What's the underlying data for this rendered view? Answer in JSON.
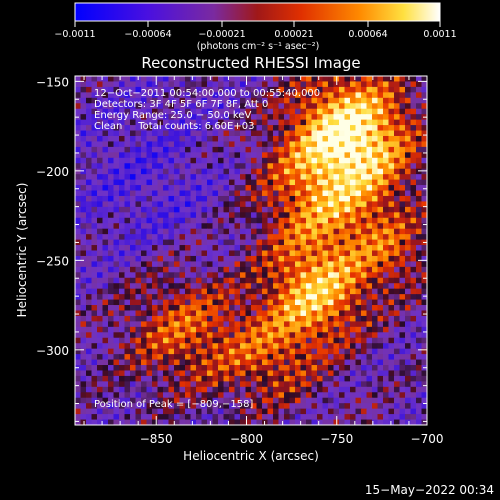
{
  "chart_data": {
    "type": "heatmap",
    "title": "Reconstructed RHESSI Image",
    "xlabel": "Heliocentric X (arcsec)",
    "ylabel": "Heliocentric Y (arcsec)",
    "xlim": [
      -895,
      -700
    ],
    "ylim": [
      -342,
      -147
    ],
    "xticks": [
      -850,
      -800,
      -750,
      -700
    ],
    "yticks": [
      -150,
      -200,
      -250,
      -300
    ],
    "xtick_labels": [
      "−850",
      "−800",
      "−750",
      "−700"
    ],
    "ytick_labels": [
      "−150",
      "−200",
      "−250",
      "−300"
    ],
    "colorbar": {
      "range": [
        -0.0011,
        0.0011
      ],
      "tick_labels": [
        "−0.0011",
        "−0.00064",
        "−0.00021",
        "0.00021",
        "0.00064",
        "0.0011"
      ],
      "units": "(photons cm⁻² s⁻¹ asec⁻²)",
      "colors": [
        "#0000ff",
        "#5b1ec8",
        "#7a2aa0",
        "#b0202a",
        "#ff5000",
        "#ffb000",
        "#ffff90",
        "#ffffff"
      ]
    },
    "annotations": [
      "12−Oct−2011 00:54:00.000 to 00:55:40.000",
      "Detectors: 3F 4F 5F 6F 7F 8F, Att 0",
      "Energy Range: 25.0 − 50.0 keV",
      "Clean     Total counts: 6.60E+03"
    ],
    "peak_label": "Position of Peak = [−809,−158]",
    "peak_position": [
      -809,
      -158
    ],
    "grid": false
  },
  "footer": {
    "timestamp": "15−May−2022 00:34"
  }
}
